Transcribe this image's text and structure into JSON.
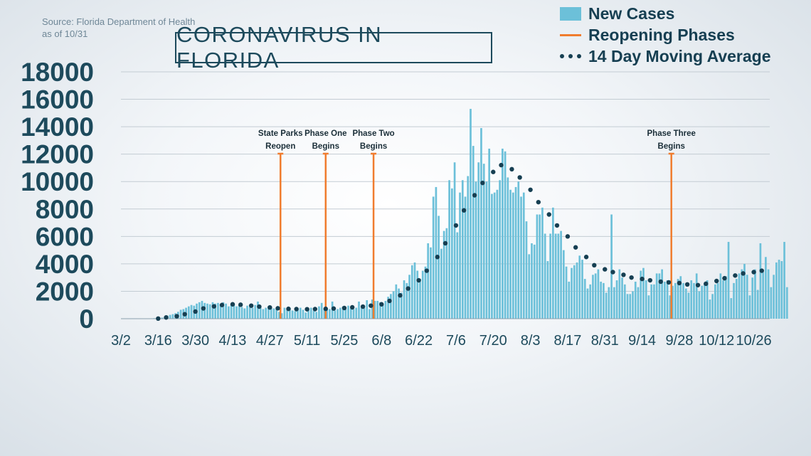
{
  "source": {
    "line1": "Source: Florida Department of Health",
    "line2": "as of 10/31"
  },
  "colors": {
    "bars": "#6cc0d9",
    "phase_lines": "#f07c2e",
    "moving_average": "#163f52",
    "axis_text": "#1d4a5c",
    "grid": "#c3ccd3"
  },
  "chart_data": {
    "type": "bar",
    "title": "CORONAVIRUS IN FLORIDA",
    "ylim": [
      0,
      18000
    ],
    "yticks": [
      0,
      2000,
      4000,
      6000,
      8000,
      10000,
      12000,
      14000,
      16000,
      18000
    ],
    "xticks": [
      "3/2",
      "3/16",
      "3/30",
      "4/13",
      "4/27",
      "5/11",
      "5/25",
      "6/8",
      "6/22",
      "7/6",
      "7/20",
      "8/3",
      "8/17",
      "8/31",
      "9/14",
      "9/28",
      "10/12",
      "10/26"
    ],
    "grid": true,
    "legend_position": "top-right",
    "legend": [
      "New Cases",
      "Reopening Phases",
      "14 Day Moving Average"
    ],
    "x_start": "3/2",
    "x_end": "10/31",
    "series": [
      {
        "name": "New Cases",
        "type": "bar",
        "values": [
          0,
          0,
          2,
          2,
          4,
          4,
          6,
          8,
          10,
          14,
          22,
          28,
          40,
          50,
          60,
          80,
          140,
          220,
          280,
          330,
          400,
          500,
          650,
          700,
          800,
          900,
          1000,
          950,
          1100,
          1200,
          1300,
          1150,
          1100,
          1050,
          1200,
          1100,
          1150,
          1050,
          1200,
          1100,
          900,
          1000,
          1100,
          900,
          1000,
          850,
          750,
          950,
          850,
          800,
          1000,
          1250,
          950,
          700,
          800,
          900,
          850,
          750,
          700,
          500,
          400,
          800,
          650,
          800,
          600,
          550,
          700,
          800,
          650,
          450,
          700,
          800,
          600,
          500,
          900,
          1150,
          700,
          650,
          700,
          1250,
          600,
          700,
          800,
          900,
          700,
          950,
          750,
          700,
          800,
          1250,
          850,
          800,
          1350,
          700,
          1400,
          1300,
          1300,
          1200,
          1100,
          1300,
          1600,
          1800,
          2000,
          2500,
          2200,
          1900,
          2800,
          2600,
          3200,
          3900,
          4100,
          3500,
          2900,
          3500,
          3800,
          5500,
          5200,
          8900,
          9600,
          7500,
          5100,
          6400,
          6600,
          10100,
          9500,
          11400,
          6300,
          9200,
          10100,
          8900,
          10400,
          15300,
          12600,
          10000,
          11400,
          13900,
          11300,
          10000,
          12400,
          9100,
          9200,
          9400,
          10100,
          12400,
          12200,
          10300,
          9400,
          9200,
          9600,
          10000,
          8900,
          9200,
          7100,
          4700,
          5500,
          5400,
          7600,
          7600,
          8100,
          6200,
          4200,
          6200,
          8100,
          6200,
          6200,
          6400,
          5000,
          3800,
          2700,
          3700,
          3900,
          4100,
          4600,
          4300,
          2900,
          2200,
          2500,
          3200,
          3300,
          3600,
          2700,
          2600,
          1900,
          2300,
          7600,
          2300,
          2800,
          3600,
          3000,
          2500,
          1800,
          1800,
          2000,
          2700,
          2300,
          3500,
          3700,
          2800,
          1700,
          2500,
          2500,
          3300,
          3300,
          3600,
          2700,
          2800,
          1700,
          2400,
          2600,
          2900,
          3100,
          2600,
          2200,
          1900,
          2800,
          2600,
          3300,
          2000,
          2400,
          2600,
          2800,
          1400,
          1800,
          2500,
          2600,
          3300,
          2800,
          3100,
          5600,
          1500,
          2600,
          2900,
          3300,
          3600,
          4000,
          3200,
          1700,
          3000,
          3600,
          2100,
          5500,
          3400,
          4500,
          3600,
          2300,
          3200,
          4100,
          4300,
          4200,
          5600,
          2300
        ]
      },
      {
        "name": "14 Day Moving Average",
        "type": "line",
        "points": [
          [
            "3/16",
            10
          ],
          [
            "3/19",
            90
          ],
          [
            "3/23",
            180
          ],
          [
            "3/26",
            330
          ],
          [
            "3/30",
            520
          ],
          [
            "4/2",
            750
          ],
          [
            "4/6",
            900
          ],
          [
            "4/9",
            1000
          ],
          [
            "4/13",
            1050
          ],
          [
            "4/16",
            1020
          ],
          [
            "4/20",
            950
          ],
          [
            "4/23",
            880
          ],
          [
            "4/27",
            820
          ],
          [
            "4/30",
            760
          ],
          [
            "5/4",
            720
          ],
          [
            "5/7",
            700
          ],
          [
            "5/11",
            690
          ],
          [
            "5/14",
            700
          ],
          [
            "5/18",
            720
          ],
          [
            "5/21",
            740
          ],
          [
            "5/25",
            780
          ],
          [
            "5/28",
            830
          ],
          [
            "6/1",
            880
          ],
          [
            "6/4",
            950
          ],
          [
            "6/8",
            1050
          ],
          [
            "6/11",
            1300
          ],
          [
            "6/15",
            1700
          ],
          [
            "6/18",
            2200
          ],
          [
            "6/22",
            2800
          ],
          [
            "6/25",
            3500
          ],
          [
            "6/29",
            4500
          ],
          [
            "7/2",
            5500
          ],
          [
            "7/6",
            6800
          ],
          [
            "7/9",
            7900
          ],
          [
            "7/13",
            9000
          ],
          [
            "7/16",
            9900
          ],
          [
            "7/20",
            10700
          ],
          [
            "7/23",
            11200
          ],
          [
            "7/27",
            10900
          ],
          [
            "7/30",
            10300
          ],
          [
            "8/3",
            9400
          ],
          [
            "8/6",
            8500
          ],
          [
            "8/10",
            7600
          ],
          [
            "8/13",
            6800
          ],
          [
            "8/17",
            6000
          ],
          [
            "8/20",
            5200
          ],
          [
            "8/24",
            4500
          ],
          [
            "8/27",
            3900
          ],
          [
            "8/31",
            3600
          ],
          [
            "9/3",
            3400
          ],
          [
            "9/7",
            3200
          ],
          [
            "9/10",
            3000
          ],
          [
            "9/14",
            2900
          ],
          [
            "9/17",
            2800
          ],
          [
            "9/21",
            2700
          ],
          [
            "9/24",
            2650
          ],
          [
            "9/28",
            2600
          ],
          [
            "10/1",
            2500
          ],
          [
            "10/5",
            2450
          ],
          [
            "10/8",
            2550
          ],
          [
            "10/12",
            2750
          ],
          [
            "10/15",
            2950
          ],
          [
            "10/19",
            3150
          ],
          [
            "10/22",
            3300
          ],
          [
            "10/26",
            3400
          ],
          [
            "10/29",
            3500
          ]
        ]
      }
    ],
    "annotations": [
      {
        "date": "5/1",
        "label_lines": [
          "State Parks",
          "Reopen"
        ]
      },
      {
        "date": "5/18",
        "label_lines": [
          "Phase One",
          "Begins"
        ]
      },
      {
        "date": "6/5",
        "label_lines": [
          "Phase Two",
          "Begins"
        ]
      },
      {
        "date": "9/25",
        "label_lines": [
          "Phase Three",
          "Begins"
        ]
      }
    ]
  }
}
